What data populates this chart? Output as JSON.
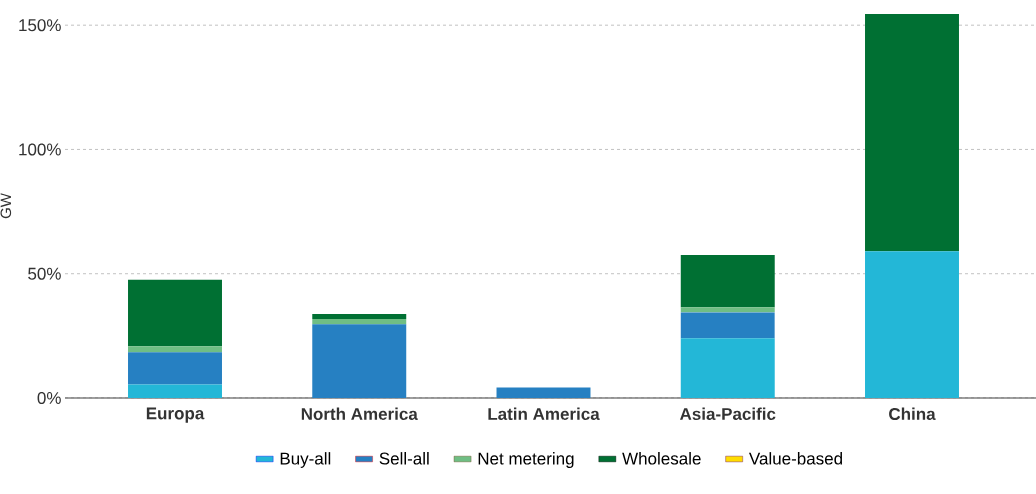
{
  "chart_data": {
    "type": "bar",
    "stacked": true,
    "ylabel": "GW",
    "categories": [
      "Europa",
      "North America",
      "Latin America",
      "Asia-Pacific",
      "China"
    ],
    "series": [
      {
        "name": "Buy-all",
        "color": "#23b7d7",
        "values": [
          5.4,
          0,
          0,
          24,
          59
        ]
      },
      {
        "name": "Sell-all",
        "color": "#2680c2",
        "values": [
          13,
          29.7,
          4.2,
          10.5,
          0
        ]
      },
      {
        "name": "Net metering",
        "color": "#6fbe84",
        "values": [
          2.4,
          2.1,
          0,
          2,
          0
        ]
      },
      {
        "name": "Wholesale",
        "color": "#007033",
        "values": [
          26.8,
          2,
          0,
          21,
          95.5
        ]
      },
      {
        "name": "Value-based",
        "color": "#ffdd00",
        "values": [
          0,
          0,
          0,
          0,
          0
        ]
      }
    ],
    "yticks": [
      {
        "value": 0,
        "label": "0%"
      },
      {
        "value": 50,
        "label": "50%"
      },
      {
        "value": 100,
        "label": "100%"
      },
      {
        "value": 150,
        "label": "150%"
      }
    ],
    "ylim": [
      0,
      154.5
    ],
    "grid": "y",
    "legend": "bottom"
  }
}
